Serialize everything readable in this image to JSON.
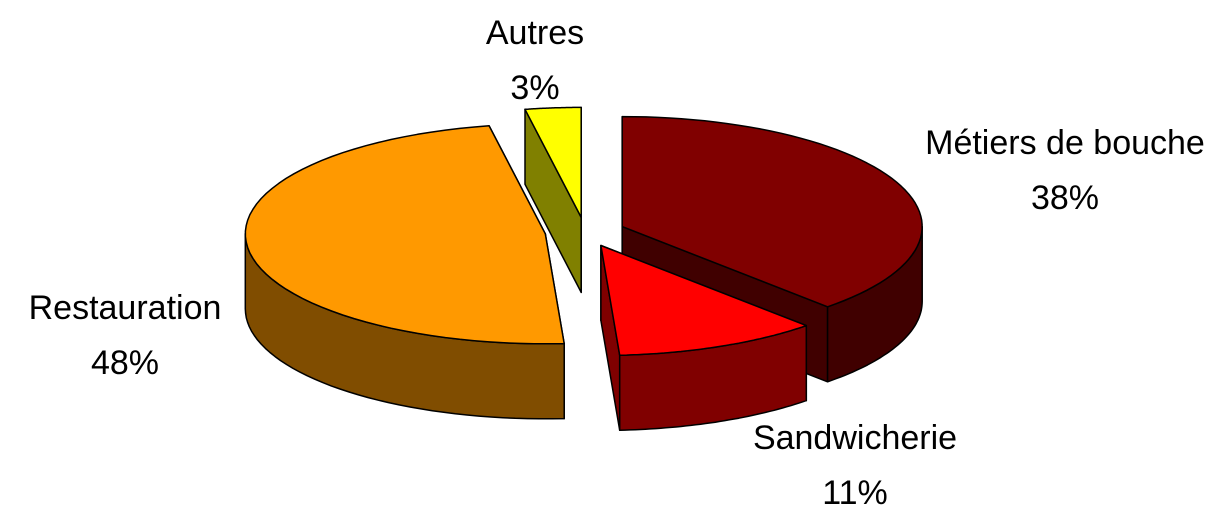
{
  "chart_data": {
    "type": "pie3d",
    "categories": [
      "Métiers de bouche",
      "Sandwicherie",
      "Restauration",
      "Autres"
    ],
    "values": [
      38,
      11,
      48,
      3
    ],
    "value_labels": [
      "38%",
      "11%",
      "48%",
      "3%"
    ],
    "colors": [
      "#800000",
      "#ff0000",
      "#ff9900",
      "#ffff00"
    ]
  }
}
